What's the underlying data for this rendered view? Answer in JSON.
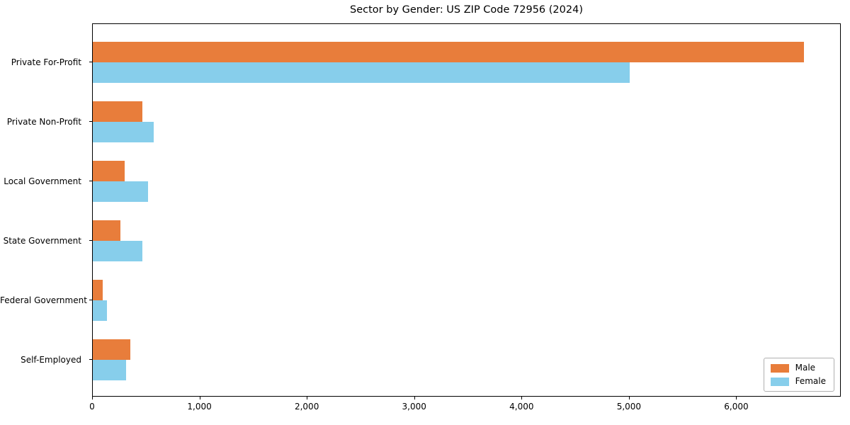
{
  "chart_data": {
    "type": "bar",
    "orientation": "horizontal",
    "title": "Sector by Gender: US ZIP Code 72956 (2024)",
    "xlabel": "",
    "ylabel": "",
    "categories": [
      "Private For-Profit",
      "Private Non-Profit",
      "Local Government",
      "State Government",
      "Federal Government",
      "Self-Employed"
    ],
    "series": [
      {
        "name": "Male",
        "color": "#e87d3b",
        "values": [
          6625,
          465,
          300,
          260,
          90,
          350
        ]
      },
      {
        "name": "Female",
        "color": "#87ceeb",
        "values": [
          5000,
          570,
          515,
          465,
          130,
          310
        ]
      }
    ],
    "xlim": [
      0,
      6960
    ],
    "xticks": {
      "values": [
        0,
        1000,
        2000,
        3000,
        4000,
        5000,
        6000
      ],
      "labels": [
        "0",
        "1,000",
        "2,000",
        "3,000",
        "4,000",
        "5,000",
        "6,000"
      ]
    },
    "grid": false,
    "legend_position": "lower right"
  },
  "colors": {
    "male": "#e87d3b",
    "female": "#87ceeb",
    "axis": "#000000",
    "legend_border": "#b0b0b0",
    "background": "#ffffff"
  }
}
